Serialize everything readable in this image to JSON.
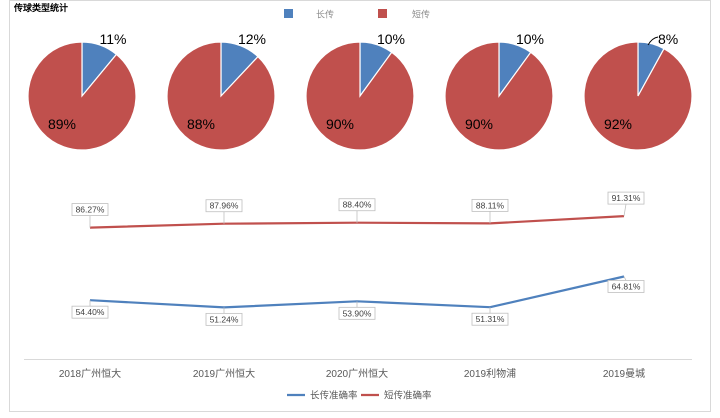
{
  "chart_data": [
    {
      "type": "pie",
      "title": "传球类型统计",
      "legend": [
        {
          "name": "长传",
          "color": "#4f81bd"
        },
        {
          "name": "短传",
          "color": "#c0504d"
        }
      ],
      "legend_placement": "top",
      "pies": [
        {
          "category": "2018广州恒大",
          "slices": [
            {
              "name": "长传",
              "value": 11,
              "label": "11%"
            },
            {
              "name": "短传",
              "value": 89,
              "label": "89%"
            }
          ]
        },
        {
          "category": "2019广州恒大",
          "slices": [
            {
              "name": "长传",
              "value": 12,
              "label": "12%"
            },
            {
              "name": "短传",
              "value": 88,
              "label": "88%"
            }
          ]
        },
        {
          "category": "2020广州恒大",
          "slices": [
            {
              "name": "长传",
              "value": 10,
              "label": "10%"
            },
            {
              "name": "短传",
              "value": 90,
              "label": "90%"
            }
          ]
        },
        {
          "category": "2019利物浦",
          "slices": [
            {
              "name": "长传",
              "value": 10,
              "label": "10%"
            },
            {
              "name": "短传",
              "value": 90,
              "label": "90%"
            }
          ]
        },
        {
          "category": "2019曼城",
          "slices": [
            {
              "name": "长传",
              "value": 8,
              "label": "8%"
            },
            {
              "name": "短传",
              "value": 92,
              "label": "92%"
            }
          ]
        }
      ]
    },
    {
      "type": "line",
      "categories": [
        "2018广州恒大",
        "2019广州恒大",
        "2020广州恒大",
        "2019利物浦",
        "2019曼城"
      ],
      "series": [
        {
          "name": "长传准确率",
          "color": "#4f81bd",
          "values": [
            54.4,
            51.24,
            53.9,
            51.31,
            64.81
          ],
          "labels": [
            "54.40%",
            "51.24%",
            "53.90%",
            "51.31%",
            "64.81%"
          ]
        },
        {
          "name": "短传准确率",
          "color": "#c0504d",
          "values": [
            86.27,
            87.96,
            88.4,
            88.11,
            91.31
          ],
          "labels": [
            "86.27%",
            "87.96%",
            "88.40%",
            "88.11%",
            "91.31%"
          ]
        }
      ],
      "legend_placement": "bottom",
      "grid": false,
      "unit": "%"
    }
  ]
}
